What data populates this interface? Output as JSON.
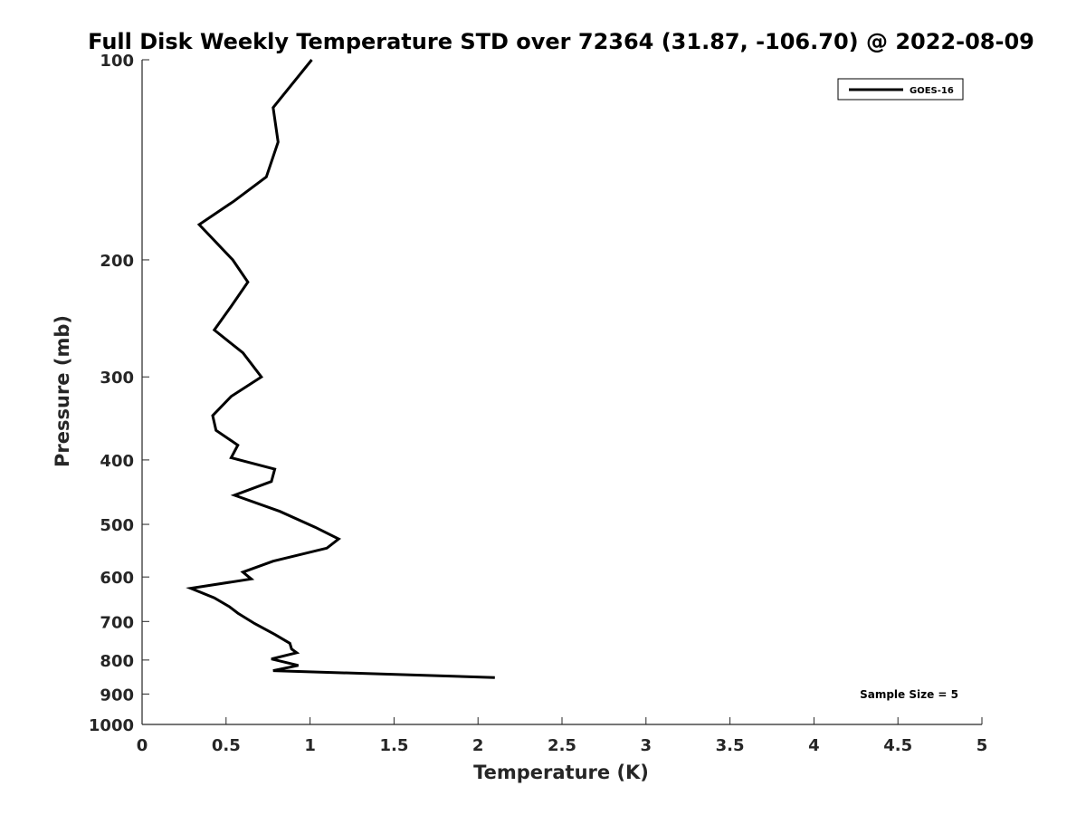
{
  "chart_data": {
    "type": "line",
    "title": "Full Disk Weekly Temperature STD over 72364 (31.87, -106.70) @ 2022-08-09",
    "xlabel": "Temperature (K)",
    "ylabel": "Pressure (mb)",
    "xlim": [
      0,
      5
    ],
    "ylim": [
      100,
      1000
    ],
    "y_scale": "log",
    "y_reversed": true,
    "x_ticks": [
      "0",
      "0.5",
      "1",
      "1.5",
      "2",
      "2.5",
      "3",
      "3.5",
      "4",
      "4.5",
      "5"
    ],
    "x_tick_values": [
      0,
      0.5,
      1,
      1.5,
      2,
      2.5,
      3,
      3.5,
      4,
      4.5,
      5
    ],
    "y_ticks": [
      "100",
      "200",
      "300",
      "400",
      "500",
      "600",
      "700",
      "800",
      "900",
      "1000"
    ],
    "y_tick_values": [
      100,
      200,
      300,
      400,
      500,
      600,
      700,
      800,
      900,
      1000
    ],
    "grid": false,
    "legend_position": "top-right",
    "series": [
      {
        "name": "GOES-16",
        "color": "#000000",
        "points": [
          [
            1.01,
            100
          ],
          [
            0.78,
            118
          ],
          [
            0.81,
            133
          ],
          [
            0.74,
            150
          ],
          [
            0.55,
            163
          ],
          [
            0.34,
            177
          ],
          [
            0.54,
            200
          ],
          [
            0.63,
            216
          ],
          [
            0.53,
            235
          ],
          [
            0.43,
            255
          ],
          [
            0.6,
            276
          ],
          [
            0.71,
            300
          ],
          [
            0.53,
            321
          ],
          [
            0.42,
            343
          ],
          [
            0.44,
            361
          ],
          [
            0.57,
            380
          ],
          [
            0.53,
            397
          ],
          [
            0.79,
            413
          ],
          [
            0.77,
            431
          ],
          [
            0.55,
            452
          ],
          [
            0.82,
            478
          ],
          [
            1.03,
            505
          ],
          [
            1.17,
            526
          ],
          [
            1.1,
            543
          ],
          [
            0.78,
            568
          ],
          [
            0.6,
            590
          ],
          [
            0.65,
            604
          ],
          [
            0.29,
            624
          ],
          [
            0.43,
            645
          ],
          [
            0.52,
            665
          ],
          [
            0.57,
            680
          ],
          [
            0.67,
            705
          ],
          [
            0.79,
            732
          ],
          [
            0.88,
            755
          ],
          [
            0.89,
            770
          ],
          [
            0.92,
            780
          ],
          [
            0.77,
            797
          ],
          [
            0.93,
            815
          ],
          [
            0.78,
            830
          ],
          [
            2.1,
            850
          ]
        ]
      }
    ],
    "annotation": "Sample Size = 5"
  }
}
